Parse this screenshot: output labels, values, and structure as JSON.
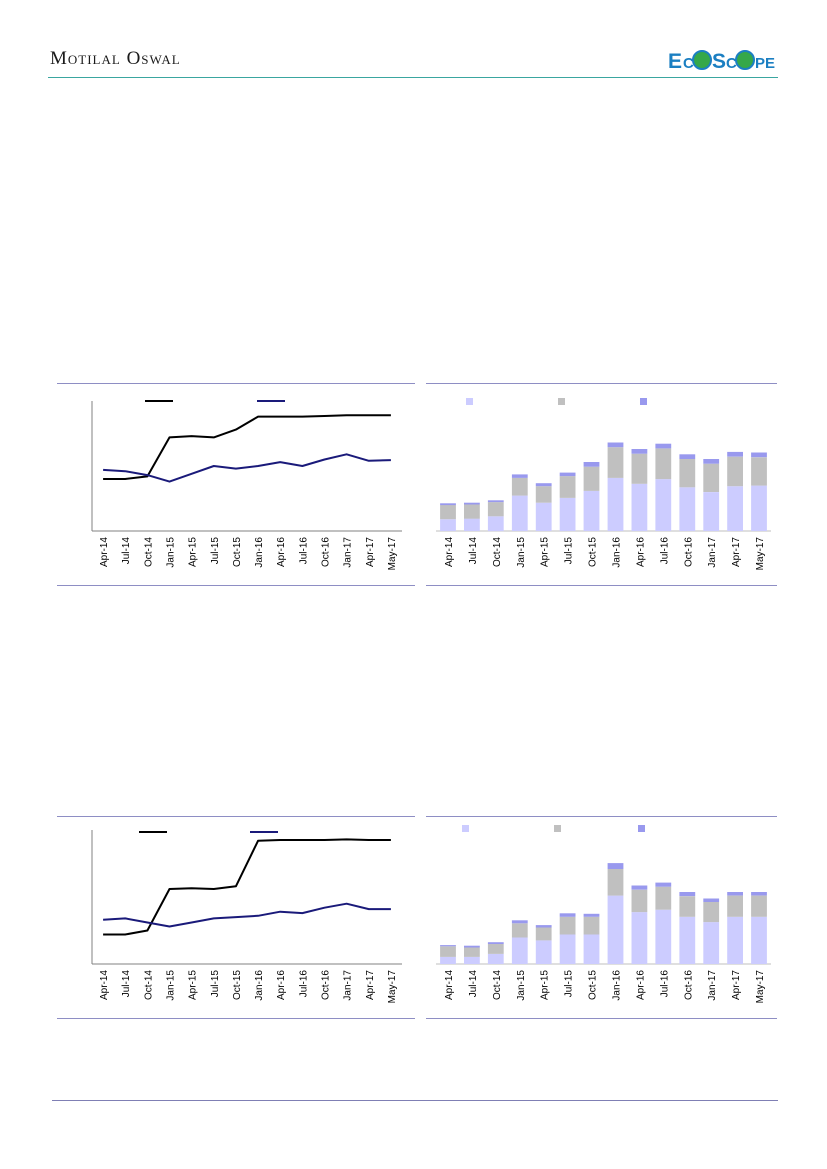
{
  "header": {
    "brand_name": "Motilal Oswal",
    "logo_text": "EcoScope",
    "colors": {
      "brand_rule": "#3aa6a0",
      "logo_blue": "#1b7fc2",
      "logo_green": "#35a84a"
    }
  },
  "months": [
    "Apr-14",
    "Jul-14",
    "Oct-14",
    "Jan-15",
    "Apr-15",
    "Jul-15",
    "Oct-15",
    "Jan-16",
    "Apr-16",
    "Jul-16",
    "Oct-16",
    "Jan-17",
    "Apr-17",
    "May-17"
  ],
  "chart_data": [
    {
      "type": "line",
      "x": [
        "Apr-14",
        "Jul-14",
        "Oct-14",
        "Jan-15",
        "Apr-15",
        "Jul-15",
        "Oct-15",
        "Jan-16",
        "Apr-16",
        "Jul-16",
        "Oct-16",
        "Jan-17",
        "Apr-17",
        "May-17"
      ],
      "series": [
        {
          "color": "#000000",
          "values": [
            40,
            40,
            42,
            72,
            73,
            72,
            78,
            88,
            88,
            88,
            88.5,
            89,
            89,
            89
          ]
        },
        {
          "color": "#1a1a7a",
          "values": [
            47,
            46,
            43,
            38,
            44,
            50,
            48,
            50,
            53,
            50,
            55,
            59,
            54,
            54.5
          ]
        }
      ],
      "ylim": [
        0,
        100
      ],
      "grid": false,
      "legend_position": "top"
    },
    {
      "type": "bar",
      "stacked": true,
      "categories": [
        "Apr-14",
        "Jul-14",
        "Oct-14",
        "Jan-15",
        "Apr-15",
        "Jul-15",
        "Oct-15",
        "Jan-16",
        "Apr-16",
        "Jul-16",
        "Oct-16",
        "Jan-17",
        "Apr-17",
        "May-17"
      ],
      "series": [
        {
          "color": "#ccccff",
          "values": [
            10,
            10.5,
            12.5,
            30,
            24,
            28,
            34,
            45,
            40,
            44,
            37,
            33,
            38,
            38.5
          ]
        },
        {
          "color": "#c0c0c0",
          "values": [
            12,
            12,
            12,
            15,
            14,
            18.5,
            20.5,
            26,
            25.5,
            26,
            24,
            24,
            25,
            24
          ]
        },
        {
          "color": "#9999ee",
          "values": [
            1.5,
            1.5,
            1.5,
            3,
            2.5,
            3,
            4,
            4,
            4,
            4,
            4,
            4,
            4,
            4
          ]
        }
      ],
      "ylim": [
        0,
        100
      ],
      "legend_position": "top"
    },
    {
      "type": "line",
      "x": [
        "Apr-14",
        "Jul-14",
        "Oct-14",
        "Jan-15",
        "Apr-15",
        "Jul-15",
        "Oct-15",
        "Jan-16",
        "Apr-16",
        "Jul-16",
        "Oct-16",
        "Jan-17",
        "Apr-17",
        "May-17"
      ],
      "series": [
        {
          "color": "#000000",
          "values": [
            22,
            22,
            25,
            56,
            56.5,
            56,
            58,
            92,
            92.5,
            92.5,
            92.5,
            93,
            92.5,
            92.5
          ]
        },
        {
          "color": "#1a1a7a",
          "values": [
            33,
            34,
            31,
            28,
            31,
            34,
            35,
            36,
            39,
            38,
            42,
            45,
            41,
            41
          ]
        }
      ],
      "ylim": [
        0,
        100
      ],
      "grid": false,
      "legend_position": "top"
    },
    {
      "type": "bar",
      "stacked": true,
      "categories": [
        "Apr-14",
        "Jul-14",
        "Oct-14",
        "Jan-15",
        "Apr-15",
        "Jul-15",
        "Oct-15",
        "Jan-16",
        "Apr-16",
        "Jul-16",
        "Oct-16",
        "Jan-17",
        "Apr-17",
        "May-17"
      ],
      "series": [
        {
          "color": "#ccccff",
          "values": [
            6,
            6,
            8.5,
            22.5,
            20,
            25,
            25,
            58,
            44,
            46,
            40,
            35.5,
            40,
            40
          ]
        },
        {
          "color": "#c0c0c0",
          "values": [
            9,
            8,
            8.5,
            12,
            11,
            15,
            15,
            22.5,
            19,
            19.5,
            17.5,
            17,
            18,
            18
          ]
        },
        {
          "color": "#9999ee",
          "values": [
            1,
            1.5,
            1.5,
            2.5,
            2,
            3,
            2.5,
            5,
            3.5,
            3.5,
            3.5,
            3,
            3,
            3
          ]
        }
      ],
      "ylim": [
        0,
        100
      ],
      "legend_position": "top"
    }
  ]
}
